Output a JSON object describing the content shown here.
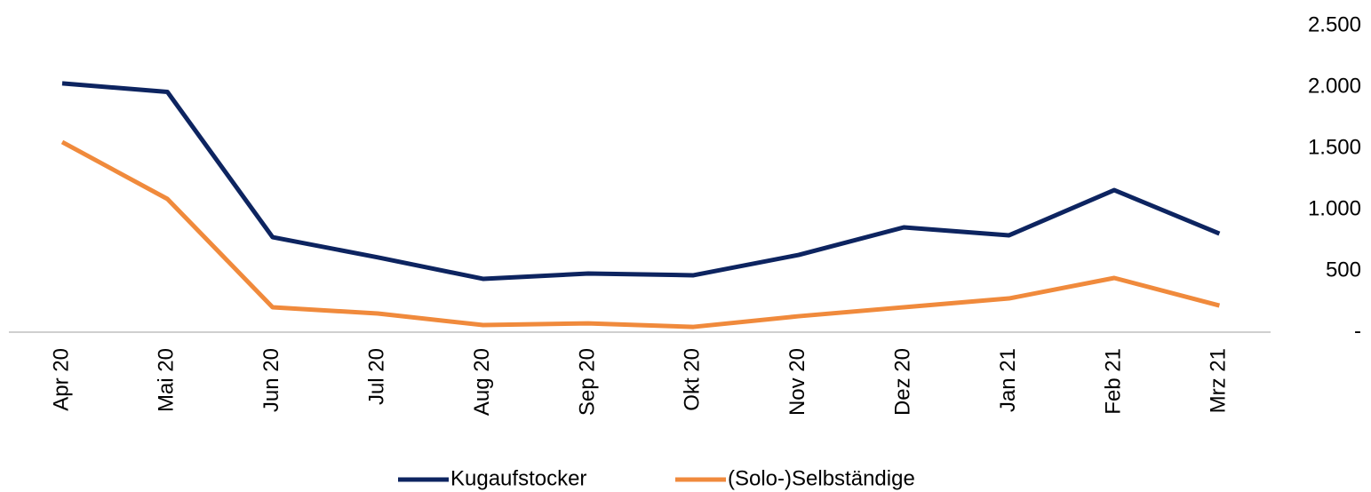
{
  "chart_data": {
    "type": "line",
    "categories": [
      "Apr 20",
      "Mai 20",
      "Jun 20",
      "Jul 20",
      "Aug 20",
      "Sep 20",
      "Okt 20",
      "Nov 20",
      "Dez 20",
      "Jan 21",
      "Feb 21",
      "Mrz 21"
    ],
    "series": [
      {
        "name": "Kugaufstocker",
        "color": "#0d2460",
        "values": [
          2030,
          1960,
          775,
          610,
          435,
          478,
          464,
          630,
          855,
          790,
          1159,
          804
        ]
      },
      {
        "name": "(Solo-)Selbständige",
        "color": "#f08a3c",
        "values": [
          1551,
          1087,
          203,
          152,
          58,
          72,
          43,
          130,
          203,
          275,
          442,
          217
        ]
      }
    ],
    "ylim": [
      0,
      2500
    ],
    "yticks": [
      {
        "value": 0,
        "label": "-"
      },
      500,
      {
        "value": 1000,
        "label": "1.000"
      },
      {
        "value": 1500,
        "label": "1.500"
      },
      {
        "value": 2000,
        "label": "2.000"
      },
      {
        "value": 2500,
        "label": "2.500"
      }
    ],
    "grid": false,
    "legend": "bottom"
  }
}
